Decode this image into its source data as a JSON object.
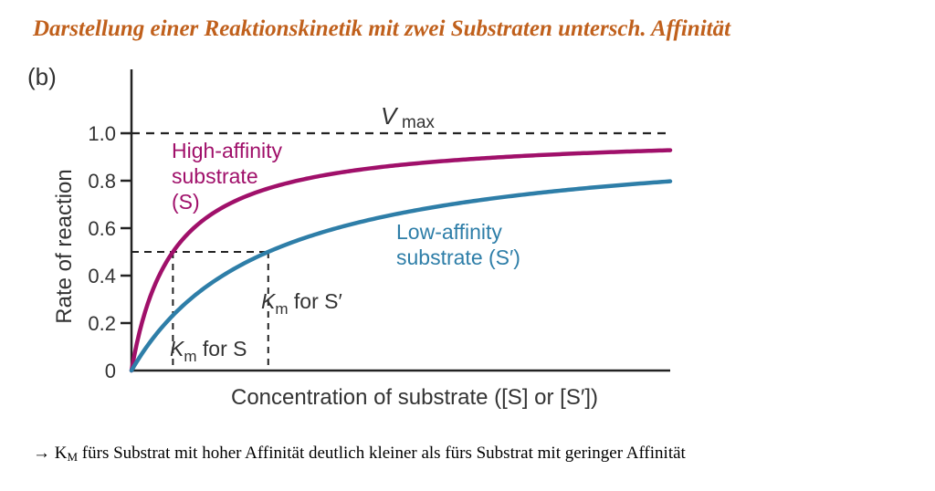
{
  "heading": "Darstellung einer Reaktionskinetik mit zwei Substraten untersch. Affinität",
  "footnote": {
    "arrow": "→",
    "k": "K",
    "k_sub": "M",
    "text": " fürs Substrat mit hoher Affinität deutlich kleiner als fürs Substrat mit geringer Affinität"
  },
  "chart_data": {
    "type": "line",
    "panel_label": "(b)",
    "title": "",
    "xlabel": "Concentration of substrate ([S] or [S′])",
    "ylabel": "Rate of reaction",
    "ylim": [
      0,
      1.0
    ],
    "yticks": [
      "0",
      "0.2",
      "0.4",
      "0.6",
      "0.8",
      "1.0"
    ],
    "ytick_values": [
      0,
      0.2,
      0.4,
      0.6,
      0.8,
      1.0
    ],
    "xlim": [
      0,
      13
    ],
    "grid": false,
    "colors": {
      "high": "#a0106a",
      "low": "#2e7ea8"
    },
    "vmax": {
      "value": 1.0,
      "label_v": "V",
      "label_sub": "max"
    },
    "series": [
      {
        "name": "High-affinity substrate (S)",
        "label_lines": [
          "High-affinity",
          "substrate",
          "(S)"
        ],
        "km": 1.0,
        "color": "#a0106a"
      },
      {
        "name": "Low-affinity substrate (S′)",
        "label_lines": [
          "Low-affinity",
          "substrate (S′)"
        ],
        "km": 3.3,
        "color": "#2e7ea8"
      }
    ],
    "annotations": [
      {
        "k": "K",
        "sub": "m",
        "text": " for S",
        "series": 0
      },
      {
        "k": "K",
        "sub": "m",
        "text": " for S′",
        "series": 1
      }
    ]
  }
}
